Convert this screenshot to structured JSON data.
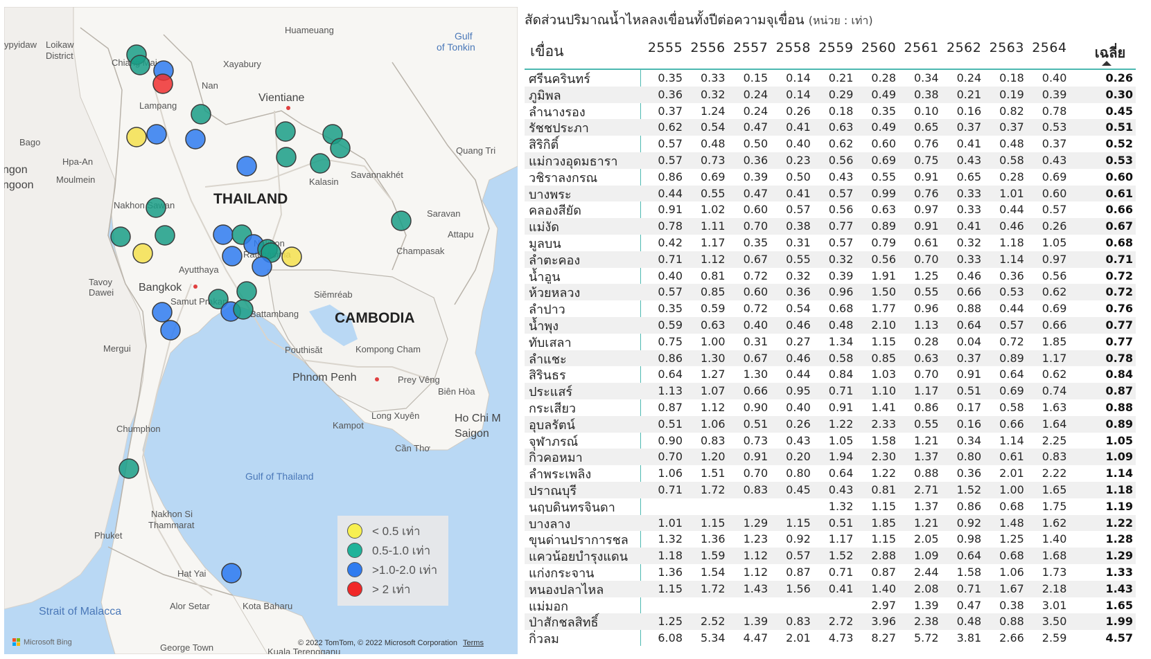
{
  "map": {
    "labels": {
      "thailand": "THAILAND",
      "cambodia": "CAMBODIA",
      "gulf_tonkin_1": "Gulf",
      "gulf_tonkin_2": "of Tonkin",
      "gulf_thailand": "Gulf of Thailand",
      "strait_malacca": "Strait of Malacca",
      "huameuang": "Huameuang",
      "xayabury": "Xayabury",
      "nan": "Nan",
      "vientiane": "Vientiane",
      "chiang_mai": "Chiang Mai",
      "lampang": "Lampang",
      "loikaw_1": "Loikaw",
      "loikaw_2": "District",
      "ypyidaw": "ypyidaw",
      "bago": "Bago",
      "hpa_an": "Hpa-An",
      "ngon": "ngon",
      "ngoon": "ngoon",
      "moulmein": "Moulmein",
      "quang_tri": "Quang Tri",
      "kalasin": "Kalasin",
      "savannakhet": "Savannakhét",
      "saravan": "Saravan",
      "attapu": "Attapu",
      "champasak": "Champasak",
      "nakhon_sawan": "Nakhon Sawan",
      "nakhon": "Nakhon",
      "ratchasima": "Ratchasima",
      "ayutthaya": "Ayutthaya",
      "bangkok": "Bangkok",
      "samut_prakan": "Samut Prakan",
      "tavoy": "Tavoy",
      "dawei": "Dawei",
      "siemreab": "Siĕmréab",
      "battambang": "Battambang",
      "pouthisat": "Pouthisăt",
      "kompong_cham": "Kompong Cham",
      "phnom_penh": "Phnom Penh",
      "prey_veng": "Prey Vêng",
      "bien_hoa": "Biên Hòa",
      "long_xuyen": "Long Xuyên",
      "ho_chi_minh": "Ho Chi M",
      "saigon": "Saigon",
      "kampot": "Kampot",
      "can_tho": "Cần Thơ",
      "mergui": "Mergui",
      "chumphon": "Chumphon",
      "nakhon_si_1": "Nakhon Si",
      "nakhon_si_2": "Thammarat",
      "phuket": "Phuket",
      "hat_yai": "Hat Yai",
      "alor_setar": "Alor Setar",
      "kota_baharu": "Kota Baharu",
      "george_town": "George Town",
      "kuala_terengganu": "Kuala Terengganu"
    },
    "copyright": "© 2022 TomTom, © 2022 Microsoft Corporation",
    "terms": "Terms",
    "provider": "Microsoft Bing",
    "colors": {
      "yellow": "#f4e04d",
      "teal": "#1a9e86",
      "blue": "#2f7bf0",
      "red": "#f03030"
    },
    "legend": [
      {
        "color": "#f7f050",
        "label": "< 0.5 เท่า"
      },
      {
        "color": "#1fb39a",
        "label": "0.5-1.0 เท่า"
      },
      {
        "color": "#2f7bf0",
        "label": ">1.0-2.0 เท่า"
      },
      {
        "color": "#f02828",
        "label": "> 2 เท่า"
      }
    ]
  },
  "table": {
    "title": "สัดส่วนปริมาณน้ำไหลลงเขื่อนทั้งปีต่อความจุเขื่อน",
    "unit": "(หน่วย : เท่า)",
    "col_dam": "เขื่อน",
    "years": [
      "2555",
      "2556",
      "2557",
      "2558",
      "2559",
      "2560",
      "2561",
      "2562",
      "2563",
      "2564"
    ],
    "col_avg": "เฉลี่ย",
    "rows": [
      {
        "name": "ศรีนครินทร์",
        "v": [
          "0.35",
          "0.33",
          "0.15",
          "0.14",
          "0.21",
          "0.28",
          "0.34",
          "0.24",
          "0.18",
          "0.40"
        ],
        "avg": "0.26"
      },
      {
        "name": "ภูมิพล",
        "v": [
          "0.36",
          "0.32",
          "0.24",
          "0.14",
          "0.29",
          "0.49",
          "0.38",
          "0.21",
          "0.19",
          "0.39"
        ],
        "avg": "0.30"
      },
      {
        "name": "ลำนางรอง",
        "v": [
          "0.37",
          "1.24",
          "0.24",
          "0.26",
          "0.18",
          "0.35",
          "0.10",
          "0.16",
          "0.82",
          "0.78"
        ],
        "avg": "0.45"
      },
      {
        "name": "รัชชประภา",
        "v": [
          "0.62",
          "0.54",
          "0.47",
          "0.41",
          "0.63",
          "0.49",
          "0.65",
          "0.37",
          "0.37",
          "0.53"
        ],
        "avg": "0.51"
      },
      {
        "name": "สิริกิติ์",
        "v": [
          "0.57",
          "0.48",
          "0.50",
          "0.40",
          "0.62",
          "0.60",
          "0.76",
          "0.41",
          "0.48",
          "0.37"
        ],
        "avg": "0.52"
      },
      {
        "name": "แม่กวงอุดมธารา",
        "v": [
          "0.57",
          "0.73",
          "0.36",
          "0.23",
          "0.56",
          "0.69",
          "0.75",
          "0.43",
          "0.58",
          "0.43"
        ],
        "avg": "0.53"
      },
      {
        "name": "วชิราลงกรณ",
        "v": [
          "0.86",
          "0.69",
          "0.39",
          "0.50",
          "0.43",
          "0.55",
          "0.91",
          "0.65",
          "0.28",
          "0.69"
        ],
        "avg": "0.60"
      },
      {
        "name": "บางพระ",
        "v": [
          "0.44",
          "0.55",
          "0.47",
          "0.41",
          "0.57",
          "0.99",
          "0.76",
          "0.33",
          "1.01",
          "0.60"
        ],
        "avg": "0.61"
      },
      {
        "name": "คลองสียัด",
        "v": [
          "0.91",
          "1.02",
          "0.60",
          "0.57",
          "0.56",
          "0.63",
          "0.97",
          "0.33",
          "0.44",
          "0.57"
        ],
        "avg": "0.66"
      },
      {
        "name": "แม่งัด",
        "v": [
          "0.78",
          "1.11",
          "0.70",
          "0.38",
          "0.77",
          "0.89",
          "0.91",
          "0.41",
          "0.46",
          "0.26"
        ],
        "avg": "0.67"
      },
      {
        "name": "มูลบน",
        "v": [
          "0.42",
          "1.17",
          "0.35",
          "0.31",
          "0.57",
          "0.79",
          "0.61",
          "0.32",
          "1.18",
          "1.05"
        ],
        "avg": "0.68"
      },
      {
        "name": "ลำตะคอง",
        "v": [
          "0.71",
          "1.12",
          "0.67",
          "0.55",
          "0.32",
          "0.56",
          "0.70",
          "0.33",
          "1.14",
          "0.97"
        ],
        "avg": "0.71"
      },
      {
        "name": "น้ำอูน",
        "v": [
          "0.40",
          "0.81",
          "0.72",
          "0.32",
          "0.39",
          "1.91",
          "1.25",
          "0.46",
          "0.36",
          "0.56"
        ],
        "avg": "0.72"
      },
      {
        "name": "ห้วยหลวง",
        "v": [
          "0.57",
          "0.85",
          "0.60",
          "0.36",
          "0.96",
          "1.50",
          "0.55",
          "0.66",
          "0.53",
          "0.62"
        ],
        "avg": "0.72"
      },
      {
        "name": "ลำปาว",
        "v": [
          "0.35",
          "0.59",
          "0.72",
          "0.54",
          "0.68",
          "1.77",
          "0.96",
          "0.88",
          "0.44",
          "0.69"
        ],
        "avg": "0.76"
      },
      {
        "name": "น้ำพุง",
        "v": [
          "0.59",
          "0.63",
          "0.40",
          "0.46",
          "0.48",
          "2.10",
          "1.13",
          "0.64",
          "0.57",
          "0.66"
        ],
        "avg": "0.77"
      },
      {
        "name": "ทับเสลา",
        "v": [
          "0.75",
          "1.00",
          "0.31",
          "0.27",
          "1.34",
          "1.15",
          "0.28",
          "0.04",
          "0.72",
          "1.85"
        ],
        "avg": "0.77"
      },
      {
        "name": "ลำแชะ",
        "v": [
          "0.86",
          "1.30",
          "0.67",
          "0.46",
          "0.58",
          "0.85",
          "0.63",
          "0.37",
          "0.89",
          "1.17"
        ],
        "avg": "0.78"
      },
      {
        "name": "สิรินธร",
        "v": [
          "0.64",
          "1.27",
          "1.30",
          "0.44",
          "0.84",
          "1.03",
          "0.70",
          "0.91",
          "0.64",
          "0.62"
        ],
        "avg": "0.84"
      },
      {
        "name": "ประแสร์",
        "v": [
          "1.13",
          "1.07",
          "0.66",
          "0.95",
          "0.71",
          "1.10",
          "1.17",
          "0.51",
          "0.69",
          "0.74"
        ],
        "avg": "0.87"
      },
      {
        "name": "กระเสียว",
        "v": [
          "0.87",
          "1.12",
          "0.90",
          "0.40",
          "0.91",
          "1.41",
          "0.86",
          "0.17",
          "0.58",
          "1.63"
        ],
        "avg": "0.88"
      },
      {
        "name": "อุบลรัตน์",
        "v": [
          "0.51",
          "1.06",
          "0.51",
          "0.26",
          "1.22",
          "2.33",
          "0.55",
          "0.16",
          "0.66",
          "1.64"
        ],
        "avg": "0.89"
      },
      {
        "name": "จุฬาภรณ์",
        "v": [
          "0.90",
          "0.83",
          "0.73",
          "0.43",
          "1.05",
          "1.58",
          "1.21",
          "0.34",
          "1.14",
          "2.25"
        ],
        "avg": "1.05"
      },
      {
        "name": "กิ่วคอหมา",
        "v": [
          "0.70",
          "1.20",
          "0.91",
          "0.20",
          "1.94",
          "2.30",
          "1.37",
          "0.80",
          "0.61",
          "0.83"
        ],
        "avg": "1.09"
      },
      {
        "name": "ลำพระเพลิง",
        "v": [
          "1.06",
          "1.51",
          "0.70",
          "0.80",
          "0.64",
          "1.22",
          "0.88",
          "0.36",
          "2.01",
          "2.22"
        ],
        "avg": "1.14"
      },
      {
        "name": "ปราณบุรี",
        "v": [
          "0.71",
          "1.72",
          "0.83",
          "0.45",
          "0.43",
          "0.81",
          "2.71",
          "1.52",
          "1.00",
          "1.65"
        ],
        "avg": "1.18"
      },
      {
        "name": "นฤบดินทรจินดา",
        "v": [
          "",
          "",
          "",
          "",
          "1.32",
          "1.15",
          "1.37",
          "0.86",
          "0.68",
          "1.75"
        ],
        "avg": "1.19"
      },
      {
        "name": "บางลาง",
        "v": [
          "1.01",
          "1.15",
          "1.29",
          "1.15",
          "0.51",
          "1.85",
          "1.21",
          "0.92",
          "1.48",
          "1.62"
        ],
        "avg": "1.22"
      },
      {
        "name": "ขุนด่านปราการชล",
        "v": [
          "1.32",
          "1.36",
          "1.23",
          "0.92",
          "1.17",
          "1.15",
          "2.05",
          "0.98",
          "1.25",
          "1.40"
        ],
        "avg": "1.28"
      },
      {
        "name": "แควน้อยบำรุงแดน",
        "v": [
          "1.18",
          "1.59",
          "1.12",
          "0.57",
          "1.52",
          "2.88",
          "1.09",
          "0.64",
          "0.68",
          "1.68"
        ],
        "avg": "1.29"
      },
      {
        "name": "แก่งกระจาน",
        "v": [
          "1.36",
          "1.54",
          "1.12",
          "0.87",
          "0.71",
          "0.87",
          "2.44",
          "1.58",
          "1.06",
          "1.73"
        ],
        "avg": "1.33"
      },
      {
        "name": "หนองปลาไหล",
        "v": [
          "1.15",
          "1.72",
          "1.43",
          "1.56",
          "0.41",
          "1.40",
          "2.08",
          "0.71",
          "1.67",
          "2.18"
        ],
        "avg": "1.43"
      },
      {
        "name": "แม่มอก",
        "v": [
          "",
          "",
          "",
          "",
          "",
          "2.97",
          "1.39",
          "0.47",
          "0.38",
          "3.01"
        ],
        "avg": "1.65"
      },
      {
        "name": "ป่าสักชลสิทธิ์",
        "v": [
          "1.25",
          "2.52",
          "1.39",
          "0.83",
          "2.72",
          "3.96",
          "2.38",
          "0.48",
          "0.88",
          "3.50"
        ],
        "avg": "1.99"
      },
      {
        "name": "กิ่วลม",
        "v": [
          "6.08",
          "5.34",
          "4.47",
          "2.01",
          "4.73",
          "8.27",
          "5.72",
          "3.81",
          "2.66",
          "2.59"
        ],
        "avg": "4.57"
      }
    ]
  }
}
